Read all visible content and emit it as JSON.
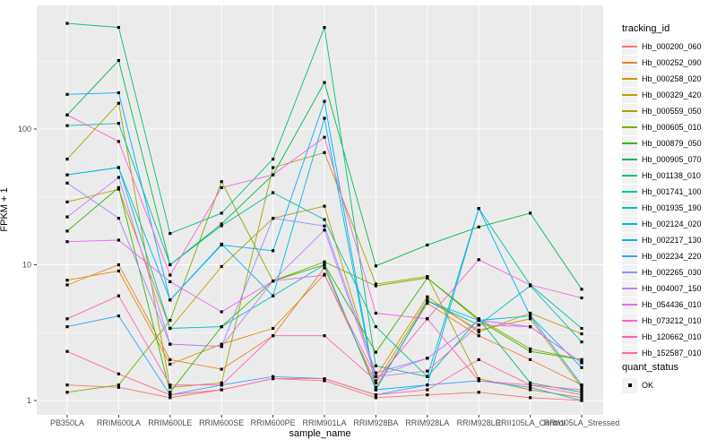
{
  "chart_data": {
    "type": "line",
    "title": "",
    "xlabel": "sample_name",
    "ylabel": "FPKM + 1",
    "y_scale": "log10",
    "y_ticks": [
      1,
      10,
      100
    ],
    "y_tick_labels": [
      "1",
      "10",
      "100"
    ],
    "y_minor_ticks": [
      3.1623,
      31.623,
      316.23
    ],
    "ylim": [
      0.78,
      813
    ],
    "grid": true,
    "panel_bg": "#EBEBEB",
    "grid_color": "#FFFFFF",
    "axis_text_color": "#4D4D4D",
    "tick_mark_color": "#333333",
    "point_color": "#000000",
    "point_shape": "square",
    "legend_title": "tracking_id",
    "legend_position": "right",
    "quant_legend": {
      "title": "quant_status",
      "items": [
        {
          "label": "OK",
          "marker": "black-square"
        }
      ]
    },
    "categories": [
      "PB350LA",
      "RRIM600LA",
      "RRIM600LE",
      "RRIM600SE",
      "RRIM600PE",
      "RRIM901LA",
      "RRIM928BA",
      "RRIM928LA",
      "RRIM928LE",
      "RRII105LA_Control",
      "RRII105LA_Stressed"
    ],
    "series": [
      {
        "name": "Hb_000200_060",
        "color": "#F8766D",
        "values": [
          1.3,
          1.25,
          1.05,
          1.2,
          1.45,
          1.4,
          1.05,
          1.1,
          1.15,
          1.05,
          1.0
        ]
      },
      {
        "name": "Hb_000252_090",
        "color": "#EA8331",
        "values": [
          7.1,
          10,
          2.0,
          1.7,
          3.0,
          9.5,
          1.25,
          5.2,
          3.0,
          2.0,
          1.3
        ]
      },
      {
        "name": "Hb_000258_020",
        "color": "#D89000",
        "values": [
          7.7,
          9.0,
          1.85,
          2.6,
          3.4,
          8.5,
          1.35,
          5.5,
          3.3,
          4.0,
          1.25
        ]
      },
      {
        "name": "Hb_000329_420",
        "color": "#C09B00",
        "values": [
          29,
          36,
          3.4,
          9.7,
          22,
          27,
          1.5,
          5.8,
          3.2,
          4.4,
          3.1
        ]
      },
      {
        "name": "Hb_000559_050",
        "color": "#A3A500",
        "values": [
          60,
          155,
          1.25,
          1.35,
          52,
          67,
          7.2,
          8.2,
          1.45,
          1.2,
          1.05
        ]
      },
      {
        "name": "Hb_000605_010",
        "color": "#7CAE00",
        "values": [
          1.15,
          1.3,
          3.9,
          41,
          7.6,
          10.5,
          7.0,
          8.0,
          4.0,
          2.4,
          2.0
        ]
      },
      {
        "name": "Hb_000879_050",
        "color": "#39B600",
        "values": [
          17.7,
          37,
          1.15,
          3.5,
          7.6,
          10,
          2.27,
          8.0,
          3.9,
          2.3,
          2.0
        ]
      },
      {
        "name": "Hb_000905_070",
        "color": "#00BB4E",
        "values": [
          127,
          320,
          10,
          20,
          46,
          220,
          9.8,
          14,
          19,
          24,
          6.6
        ]
      },
      {
        "name": "Hb_001138_010",
        "color": "#00BF7D",
        "values": [
          600,
          560,
          17,
          24,
          60,
          560,
          1.8,
          1.5,
          4.0,
          1.35,
          1.15
        ]
      },
      {
        "name": "Hb_001741_100",
        "color": "#00C1A3",
        "values": [
          106,
          110,
          10,
          19.4,
          34,
          21.5,
          3.5,
          1.5,
          26,
          7.1,
          3.4
        ]
      },
      {
        "name": "Hb_001935_190",
        "color": "#00BFC4",
        "values": [
          46,
          52,
          3.4,
          3.5,
          5.9,
          10,
          1.2,
          5.4,
          3.6,
          7.0,
          2.7
        ]
      },
      {
        "name": "Hb_002124_020",
        "color": "#00BAE0",
        "values": [
          46,
          52,
          5.5,
          14.2,
          5.9,
          120,
          1.2,
          5.4,
          3.9,
          4.2,
          1.75
        ]
      },
      {
        "name": "Hb_002217_130",
        "color": "#00B0F6",
        "values": [
          180,
          185,
          5.5,
          14,
          12.7,
          160,
          1.2,
          1.3,
          26,
          4.2,
          1.3
        ]
      },
      {
        "name": "Hb_002234_220",
        "color": "#35A2FF",
        "values": [
          3.5,
          4.2,
          1.1,
          1.3,
          1.5,
          1.45,
          1.1,
          1.3,
          1.4,
          1.25,
          1.0
        ]
      },
      {
        "name": "Hb_002265_030",
        "color": "#9590FF",
        "values": [
          40,
          22,
          2.6,
          2.5,
          22,
          19.3,
          1.6,
          2.05,
          3.9,
          3.5,
          1.9
        ]
      },
      {
        "name": "Hb_004007_150",
        "color": "#C77CFF",
        "values": [
          22.5,
          44,
          2.6,
          2.5,
          7.6,
          18,
          1.5,
          2.05,
          3.9,
          3.5,
          1.9
        ]
      },
      {
        "name": "Hb_054436_010",
        "color": "#E76BF3",
        "values": [
          14.8,
          15.2,
          7.5,
          4.5,
          7.6,
          8.4,
          1.5,
          1.65,
          3.6,
          3.5,
          1.9
        ]
      },
      {
        "name": "Hb_073212_010",
        "color": "#FA62DB",
        "values": [
          127,
          81,
          8.4,
          37,
          46,
          87,
          4.4,
          4.0,
          10.9,
          7.1,
          5.7
        ]
      },
      {
        "name": "Hb_120662_010",
        "color": "#FF62BC",
        "values": [
          4.0,
          5.9,
          1.3,
          1.3,
          3.0,
          3.0,
          1.4,
          4.0,
          1.4,
          1.3,
          1.2
        ]
      },
      {
        "name": "Hb_152587_010",
        "color": "#FF6A98",
        "values": [
          2.3,
          1.57,
          1.1,
          1.2,
          1.45,
          1.45,
          1.1,
          1.2,
          2.0,
          1.3,
          1.1
        ]
      }
    ]
  }
}
